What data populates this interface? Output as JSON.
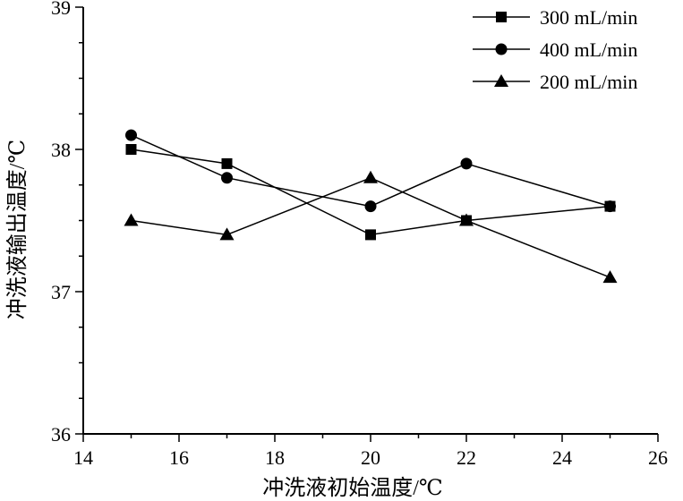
{
  "chart_data": {
    "type": "line",
    "xlabel": "冲洗液初始温度/℃",
    "ylabel": "冲洗液输出温度/℃",
    "xlim": [
      14,
      26
    ],
    "ylim": [
      36,
      39
    ],
    "xticks": [
      14,
      16,
      18,
      20,
      22,
      24,
      26
    ],
    "yticks": [
      36,
      37,
      38,
      39
    ],
    "x_minor_step": 1,
    "y_minor_step": 0.25,
    "grid": false,
    "legend_position": "top-right",
    "series": [
      {
        "name": "300 mL/min",
        "marker": "square",
        "x": [
          15,
          17,
          20,
          22,
          25
        ],
        "y": [
          38.0,
          37.9,
          37.4,
          37.5,
          37.6
        ]
      },
      {
        "name": "400 mL/min",
        "marker": "circle",
        "x": [
          15,
          17,
          20,
          22,
          25
        ],
        "y": [
          38.1,
          37.8,
          37.6,
          37.9,
          37.6
        ]
      },
      {
        "name": "200 mL/min",
        "marker": "triangle",
        "x": [
          15,
          17,
          20,
          22,
          25
        ],
        "y": [
          37.5,
          37.4,
          37.8,
          37.5,
          37.1
        ]
      }
    ]
  }
}
